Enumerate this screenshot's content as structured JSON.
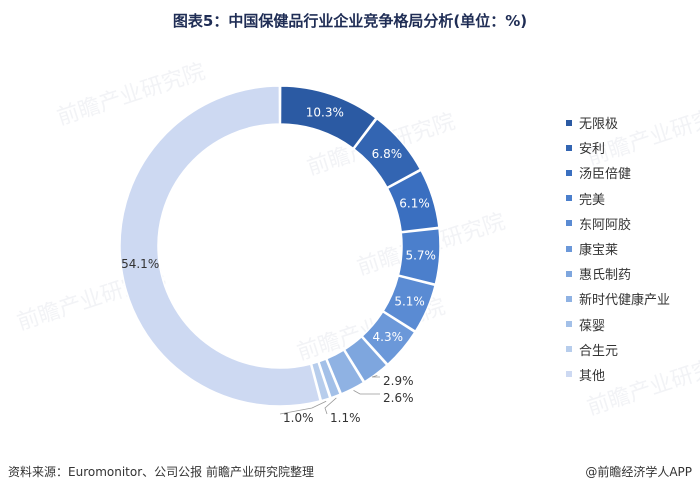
{
  "title": "图表5：中国保健品行业企业竞争格局分析(单位：%)",
  "source": "资料来源：Euromonitor、公司公报 前瞻产业研究院整理",
  "brand": "@前瞻经济学人APP",
  "watermark": "前瞻产业研究院",
  "chart_data": {
    "type": "pie",
    "donut": true,
    "legend_position": "right",
    "categories": [
      "无限极",
      "安利",
      "汤臣倍健",
      "完美",
      "东阿阿胶",
      "康宝莱",
      "惠氏制药",
      "新时代健康产业",
      "葆婴",
      "合生元",
      "其他"
    ],
    "values": [
      10.3,
      6.8,
      6.1,
      5.7,
      5.1,
      4.3,
      2.9,
      2.6,
      1.1,
      1.0,
      54.1
    ],
    "data_labels": [
      "10.3%",
      "6.8%",
      "6.1%",
      "5.7%",
      "5.1%",
      "4.3%",
      "2.9%",
      "2.6%",
      "1.1%",
      "1.0%",
      "54.1%"
    ],
    "colors": [
      "#2b5aa3",
      "#3365b2",
      "#3a6fc0",
      "#4b7fcc",
      "#5a8bd3",
      "#6b98d9",
      "#7ea6de",
      "#8fb2e3",
      "#a3c0e8",
      "#b7cdec",
      "#cdd9f2"
    ]
  }
}
